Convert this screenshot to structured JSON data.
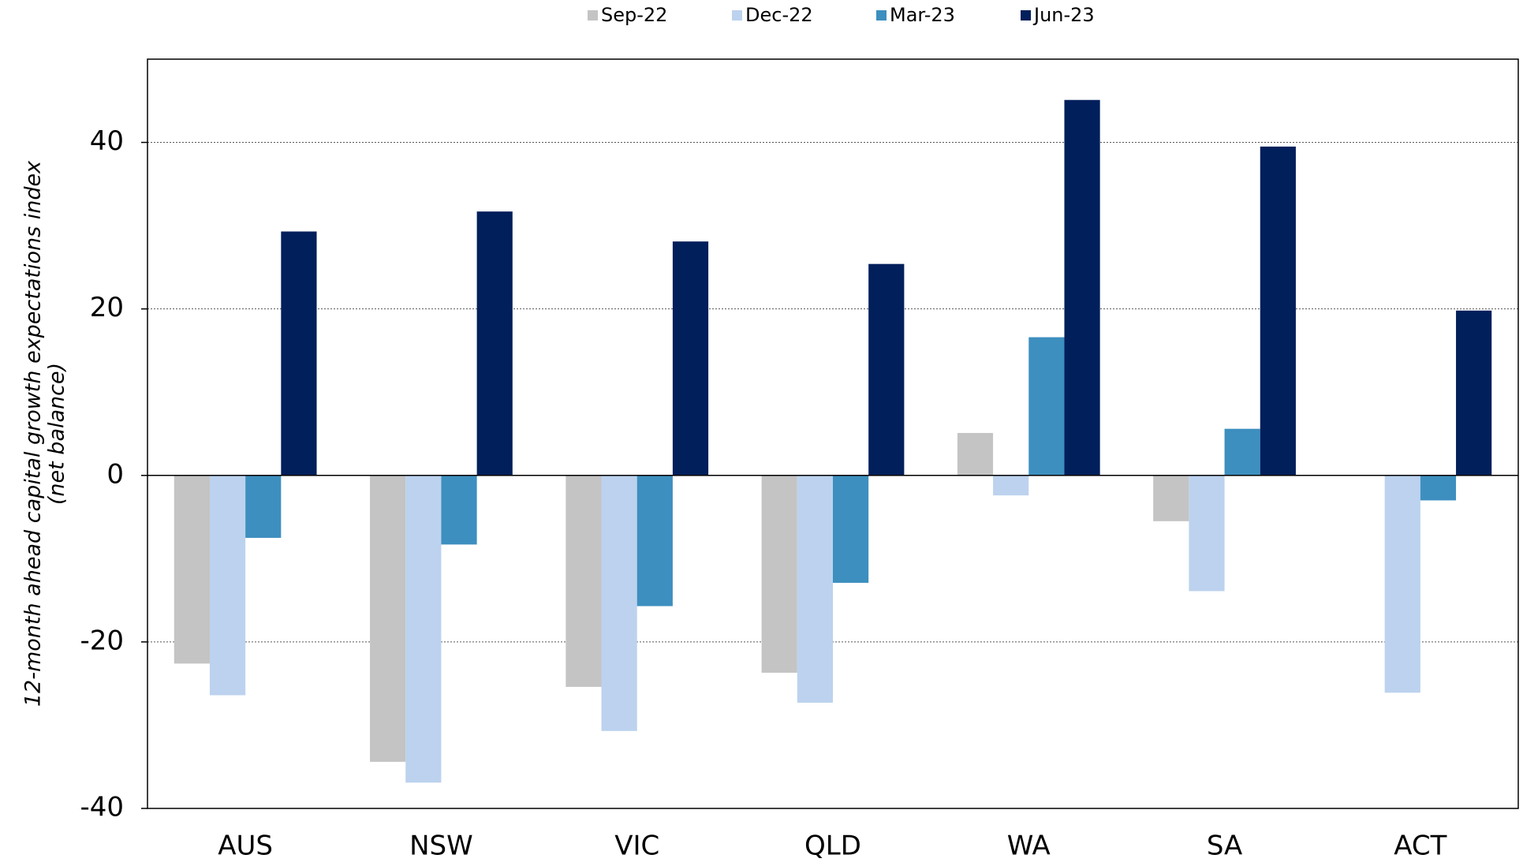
{
  "chart_data": {
    "type": "bar",
    "ylabel": "12-month ahead capital growth expectations index",
    "ylabel_sub": "(net balance)",
    "categories": [
      "AUS",
      "NSW",
      "VIC",
      "QLD",
      "WA",
      "SA",
      "ACT"
    ],
    "series": [
      {
        "name": "Sep-22",
        "color": "#c4c4c4",
        "values": [
          -22.6,
          -34.4,
          -25.4,
          -23.7,
          5.1,
          -5.5,
          null
        ]
      },
      {
        "name": "Dec-22",
        "color": "#bcd2ee",
        "values": [
          -26.4,
          -36.9,
          -30.7,
          -27.3,
          -2.4,
          -13.9,
          -26.1
        ]
      },
      {
        "name": "Mar-23",
        "color": "#3d8fbf",
        "values": [
          -7.5,
          -8.3,
          -15.7,
          -12.9,
          16.6,
          5.6,
          -3.0
        ]
      },
      {
        "name": "Jun-23",
        "color": "#001f5b",
        "values": [
          29.3,
          31.7,
          28.1,
          25.4,
          45.1,
          39.5,
          19.8
        ]
      }
    ],
    "ylim": [
      -40,
      50
    ],
    "yticks": [
      -40,
      -20,
      0,
      20,
      40
    ],
    "grid": true
  }
}
